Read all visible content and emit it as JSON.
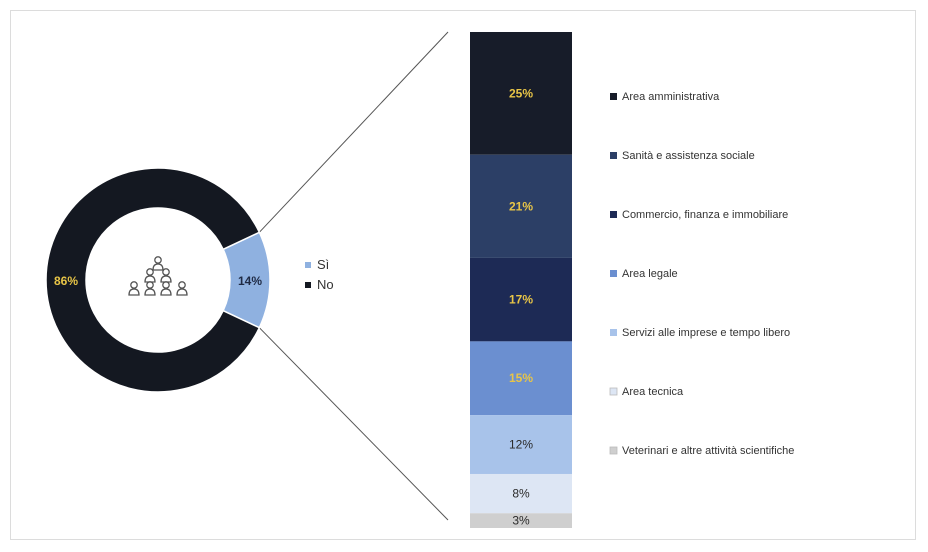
{
  "chart_data": [
    {
      "type": "pie",
      "variant": "donut",
      "categories": [
        "Sì",
        "No"
      ],
      "values": [
        14,
        86
      ],
      "value_labels": [
        "14%",
        "86%"
      ],
      "legend": [
        "Sì",
        "No"
      ],
      "legend_placement": "right",
      "colors": [
        "#8fb1e0",
        "#141821"
      ],
      "center_icon": "people-group-icon"
    },
    {
      "type": "bar",
      "variant": "100%-stacked-column",
      "categories": [
        "Area amministrativa",
        "Sanità e assistenza sociale",
        "Commercio, finanza e immobiliare",
        "Area legale",
        "Servizi alle imprese e tempo libero",
        "Area tecnica",
        "Veterinari e altre attività scientifiche"
      ],
      "values": [
        25,
        21,
        17,
        15,
        12,
        8,
        3
      ],
      "value_labels": [
        "25%",
        "21%",
        "17%",
        "15%",
        "12%",
        "8%",
        "3%"
      ],
      "legend_placement": "right",
      "colors": [
        "#171c29",
        "#2c3f66",
        "#1d2a55",
        "#6b8fd0",
        "#a8c3ea",
        "#dde6f4",
        "#cfcfcf"
      ],
      "label_colors": [
        "#e8c547",
        "#e8c547",
        "#e8c547",
        "#e8c547",
        "#2a2a2a",
        "#2a2a2a",
        "#2a2a2a"
      ]
    }
  ]
}
